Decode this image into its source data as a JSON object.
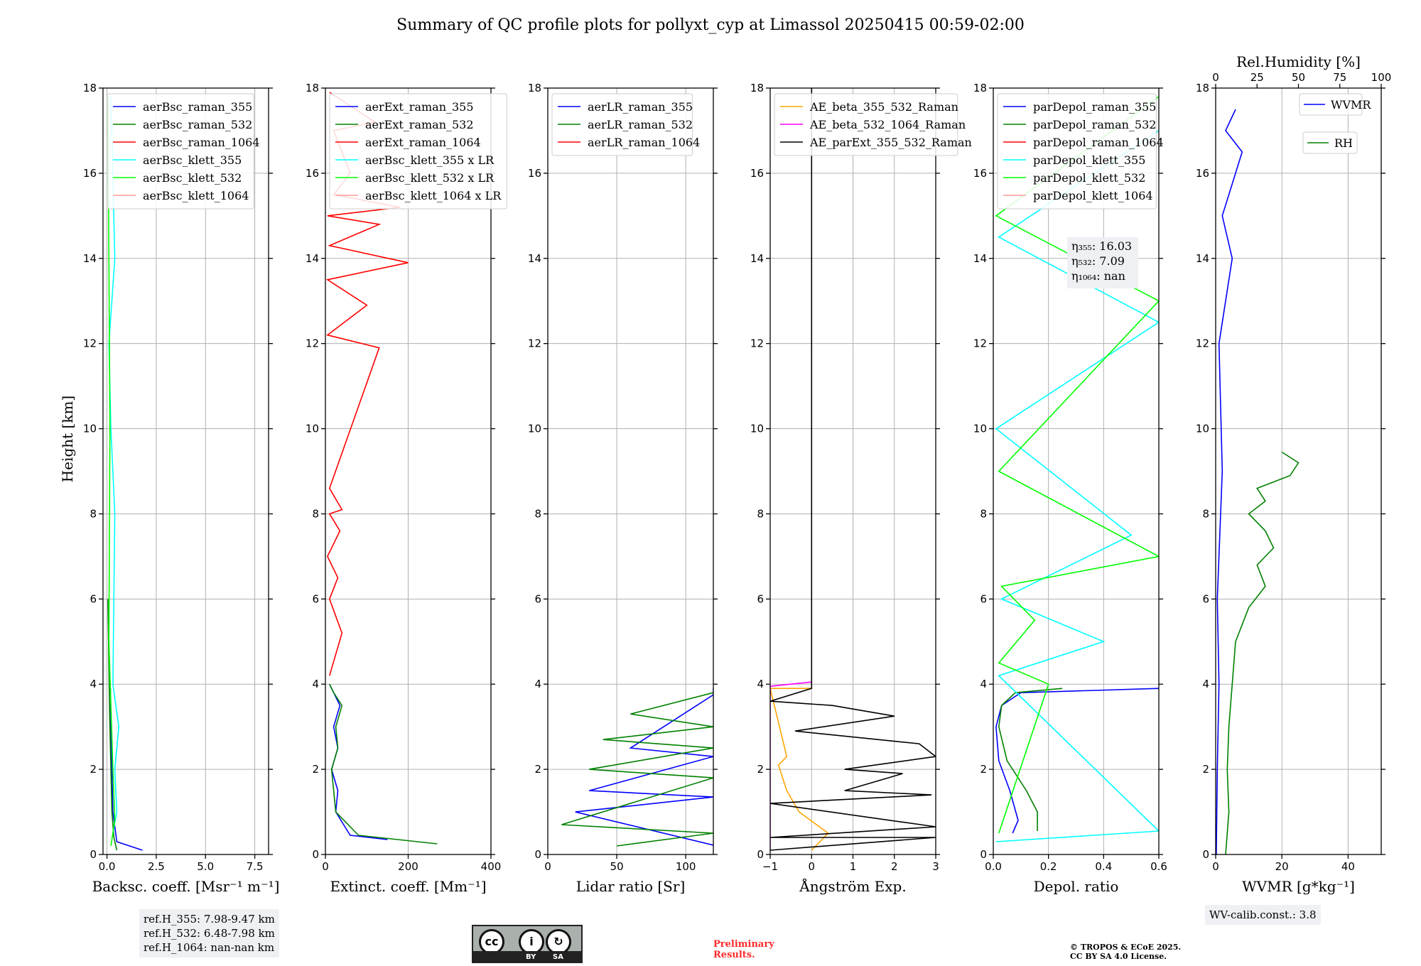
{
  "title": "Summary of QC profile plots for pollyxt_cyp at Limassol 20250415 00:59-02:00",
  "y_label": "Height [km]",
  "y_ticks": [
    "0",
    "2",
    "4",
    "6",
    "8",
    "10",
    "12",
    "14",
    "16",
    "18"
  ],
  "panels": [
    {
      "id": "bsc",
      "xlabel": "Backsc. coeff. [Msr⁻¹ m⁻¹]",
      "xlim": [
        -0.2,
        8.2
      ],
      "xticks": [
        0,
        2.5,
        5,
        7.5
      ],
      "xticklabels": [
        "0.0",
        "2.5",
        "5.0",
        "7.5"
      ],
      "legend": [
        "aerBsc_raman_355",
        "aerBsc_raman_532",
        "aerBsc_raman_1064",
        "aerBsc_klett_355",
        "aerBsc_klett_532",
        "aerBsc_klett_1064"
      ]
    },
    {
      "id": "ext",
      "xlabel": "Extinct. coeff. [Mm⁻¹]",
      "xlim": [
        0,
        400
      ],
      "xticks": [
        0,
        200,
        400
      ],
      "xticklabels": [
        "0",
        "200",
        "400"
      ],
      "legend": [
        "aerExt_raman_355",
        "aerExt_raman_532",
        "aerExt_raman_1064",
        "aerBsc_klett_355 x LR",
        "aerBsc_klett_532 x LR",
        "aerBsc_klett_1064 x LR"
      ]
    },
    {
      "id": "lr",
      "xlabel": "Lidar ratio [Sr]",
      "xlim": [
        0,
        120
      ],
      "xticks": [
        0,
        50,
        100
      ],
      "xticklabels": [
        "0",
        "50",
        "100"
      ],
      "legend": [
        "aerLR_raman_355",
        "aerLR_raman_532",
        "aerLR_raman_1064"
      ]
    },
    {
      "id": "ae",
      "xlabel": "Ångström Exp.",
      "xlim": [
        -1,
        3
      ],
      "xticks": [
        -1,
        0,
        1,
        2,
        3
      ],
      "xticklabels": [
        "−1",
        "0",
        "1",
        "2",
        "3"
      ],
      "legend": [
        "AE_beta_355_532_Raman",
        "AE_beta_532_1064_Raman",
        "AE_parExt_355_532_Raman"
      ]
    },
    {
      "id": "dep",
      "xlabel": "Depol. ratio",
      "xlim": [
        0,
        0.6
      ],
      "xticks": [
        0,
        0.2,
        0.4,
        0.6
      ],
      "xticklabels": [
        "0.0",
        "0.2",
        "0.4",
        "0.6"
      ],
      "legend": [
        "parDepol_raman_355",
        "parDepol_raman_532",
        "parDepol_raman_1064",
        "parDepol_klett_355",
        "parDepol_klett_532",
        "parDepol_klett_1064"
      ]
    },
    {
      "id": "wv",
      "xlabel": "WVMR [g*kg⁻¹]",
      "xlim": [
        0,
        50
      ],
      "xticks": [
        0,
        20,
        40
      ],
      "xticklabels": [
        "0",
        "20",
        "40"
      ],
      "top_label": "Rel.Humidity [%]",
      "top_xlim": [
        0,
        100
      ],
      "top_xticks": [
        0,
        25,
        50,
        75,
        100
      ],
      "top_xticklabels": [
        "0",
        "25",
        "50",
        "75",
        "100"
      ],
      "legend": [
        "WVMR",
        "RH"
      ]
    }
  ],
  "colors": {
    "c355": "#0000ff",
    "c532": "#008000",
    "c1064": "#ff0000",
    "k355": "#00ffff",
    "k532": "#00ff00",
    "k1064": "#ff9a9a",
    "ae1": "#ffa500",
    "ae2": "#ff00ff",
    "ae3": "#000000",
    "wvmr": "#0000ff",
    "rh": "#008000"
  },
  "eta_labels": [
    "η₃₅₅: 16.03",
    "η₅₃₂: 7.09",
    "η₁₀₆₄: nan"
  ],
  "ref_heights": [
    "ref.H_355: 7.98-9.47 km",
    "ref.H_532: 6.48-7.98 km",
    "ref.H_1064: nan-nan km"
  ],
  "wv_calib": "WV-calib.const.: 3.8",
  "cc_badge": {
    "left": "BY",
    "right": "SA"
  },
  "preliminary": [
    "Preliminary",
    "Results."
  ],
  "copyright": [
    "© TROPOS & ECoE 2025.",
    "CC BY SA 4.0 License."
  ],
  "chart_data": [
    {
      "type": "line",
      "panel": "bsc",
      "ylim": [
        0,
        18
      ],
      "series": [
        {
          "name": "aerBsc_raman_355",
          "x": [
            1.8,
            0.5,
            0.3,
            0.25,
            0.2,
            0.18
          ],
          "y": [
            0.1,
            0.3,
            1.0,
            2.0,
            3.0,
            3.9
          ]
        },
        {
          "name": "aerBsc_raman_532",
          "x": [
            0.5,
            0.35,
            0.25,
            0.2,
            0.15,
            0.12,
            0.05
          ],
          "y": [
            0.1,
            0.4,
            1.0,
            2.0,
            3.0,
            3.7,
            6.0
          ]
        },
        {
          "name": "aerBsc_klett_355",
          "x": [
            0.3,
            0.5,
            0.4,
            0.6,
            0.3,
            0.4,
            0.2,
            0.1,
            0.4,
            0.2
          ],
          "y": [
            0.5,
            1.0,
            2.0,
            3.0,
            4.0,
            8.0,
            10.0,
            12.0,
            14.0,
            17.8
          ]
        },
        {
          "name": "aerBsc_klett_532",
          "x": [
            0.2,
            0.4,
            0.3,
            0.2,
            0.1,
            0.15,
            0.05
          ],
          "y": [
            0.2,
            0.8,
            2.0,
            3.5,
            5.0,
            10.0,
            17.8
          ]
        }
      ]
    },
    {
      "type": "line",
      "panel": "ext",
      "ylim": [
        0,
        18
      ],
      "series": [
        {
          "name": "aerExt_raman_355",
          "x": [
            150,
            60,
            25,
            30,
            15,
            30,
            20,
            35,
            20,
            10
          ],
          "y": [
            0.35,
            0.45,
            1.0,
            1.5,
            2.0,
            2.5,
            3.0,
            3.5,
            3.8,
            4.0
          ]
        },
        {
          "name": "aerExt_raman_532",
          "x": [
            270,
            80,
            25,
            20,
            15,
            30,
            25,
            40,
            20,
            10
          ],
          "y": [
            0.25,
            0.45,
            1.0,
            1.5,
            2.0,
            2.5,
            3.0,
            3.5,
            3.8,
            4.0
          ]
        },
        {
          "name": "aerExt_raman_1064",
          "x": [
            10,
            40,
            10,
            30,
            5,
            35,
            10,
            40,
            10,
            130,
            5,
            100,
            5,
            200,
            10,
            130,
            5,
            180,
            20,
            60,
            20,
            120,
            10
          ],
          "y": [
            4.2,
            5.2,
            6.0,
            6.5,
            7.0,
            7.6,
            8.0,
            8.1,
            8.6,
            11.9,
            12.2,
            12.9,
            13.5,
            13.9,
            14.3,
            14.8,
            15.0,
            15.2,
            15.5,
            16.0,
            17.0,
            17.2,
            17.9
          ]
        }
      ]
    },
    {
      "type": "line",
      "panel": "lr",
      "ylim": [
        0,
        18
      ],
      "series": [
        {
          "name": "aerLR_raman_355",
          "x": [
            120,
            120,
            60,
            120,
            30,
            120,
            20,
            120
          ],
          "y": [
            3.9,
            3.75,
            2.5,
            2.3,
            1.5,
            1.35,
            1.0,
            0.22
          ]
        },
        {
          "name": "aerLR_raman_532",
          "x": [
            120,
            60,
            120,
            40,
            120,
            30,
            120,
            10,
            120,
            50
          ],
          "y": [
            3.8,
            3.3,
            3.0,
            2.7,
            2.5,
            2.0,
            1.8,
            0.7,
            0.5,
            0.2
          ]
        }
      ]
    },
    {
      "type": "line",
      "panel": "ae",
      "ylim": [
        0,
        18
      ],
      "series": [
        {
          "name": "AE_beta_355_532_Raman",
          "x": [
            0,
            -1,
            -0.6,
            -0.8,
            -0.7,
            -0.6,
            -0.3,
            0.4,
            0.1,
            0
          ],
          "y": [
            3.9,
            3.9,
            2.3,
            2.1,
            1.8,
            1.5,
            1.0,
            0.5,
            0.2,
            0.1
          ]
        },
        {
          "name": "AE_beta_532_1064_Raman",
          "x": [
            0,
            -1,
            -1
          ],
          "y": [
            4.05,
            3.95,
            0.1
          ]
        },
        {
          "name": "AE_parExt_355_532_Raman",
          "x": [
            0,
            0,
            -1,
            0.5,
            2.0,
            -0.4,
            2.6,
            3,
            0.8,
            2.2,
            0.8,
            2.9,
            -1,
            3,
            -1,
            3,
            -1
          ],
          "y": [
            18,
            3.9,
            3.6,
            3.5,
            3.25,
            2.9,
            2.6,
            2.3,
            2.0,
            1.9,
            1.5,
            1.4,
            1.2,
            0.65,
            0.4,
            0.4,
            0.1
          ]
        }
      ]
    },
    {
      "type": "line",
      "panel": "dep",
      "ylim": [
        0,
        18
      ],
      "series": [
        {
          "name": "parDepol_raman_355",
          "x": [
            0.6,
            0.1,
            0.03,
            0.01,
            0.02,
            0.06,
            0.09,
            0.07
          ],
          "y": [
            3.9,
            3.8,
            3.5,
            3.0,
            2.2,
            1.5,
            0.8,
            0.5
          ]
        },
        {
          "name": "parDepol_raman_532",
          "x": [
            0.25,
            0.08,
            0.03,
            0.02,
            0.05,
            0.12,
            0.16,
            0.16
          ],
          "y": [
            3.9,
            3.8,
            3.5,
            3.0,
            2.2,
            1.5,
            1.0,
            0.55
          ]
        },
        {
          "name": "parDepol_klett_355",
          "x": [
            0.01,
            0.6,
            0.02,
            0.4,
            0.03,
            0.5,
            0.01,
            0.6,
            0.02,
            0.6
          ],
          "y": [
            0.3,
            0.55,
            4.2,
            5.0,
            6.0,
            7.5,
            10.0,
            12.5,
            14.5,
            17.0
          ]
        },
        {
          "name": "parDepol_klett_532",
          "x": [
            0.02,
            0.2,
            0.02,
            0.15,
            0.03,
            0.6,
            0.02,
            0.6,
            0.01,
            0.6
          ],
          "y": [
            0.5,
            4.0,
            4.5,
            5.5,
            6.3,
            7.0,
            9.0,
            13.0,
            15.0,
            17.8
          ]
        }
      ]
    },
    {
      "type": "line",
      "panel": "wv",
      "ylim": [
        0,
        18
      ],
      "series": [
        {
          "name": "WVMR",
          "x": [
            0.2,
            0.5,
            1,
            0.5,
            2,
            1,
            5,
            2,
            8,
            3,
            6
          ],
          "y": [
            0.0,
            2.0,
            4.0,
            6.0,
            9.0,
            12.0,
            14.0,
            15.0,
            16.5,
            17.0,
            17.5
          ]
        },
        {
          "name": "RH",
          "x": [
            6,
            8,
            7,
            8,
            10,
            12,
            20,
            30,
            25,
            35,
            30,
            20,
            30,
            25,
            45,
            50,
            40
          ],
          "y": [
            0.0,
            1.0,
            2.0,
            3.0,
            4.0,
            5.0,
            5.8,
            6.3,
            6.8,
            7.2,
            7.6,
            8.0,
            8.3,
            8.6,
            8.9,
            9.2,
            9.45
          ],
          "axis": "top"
        }
      ]
    }
  ]
}
